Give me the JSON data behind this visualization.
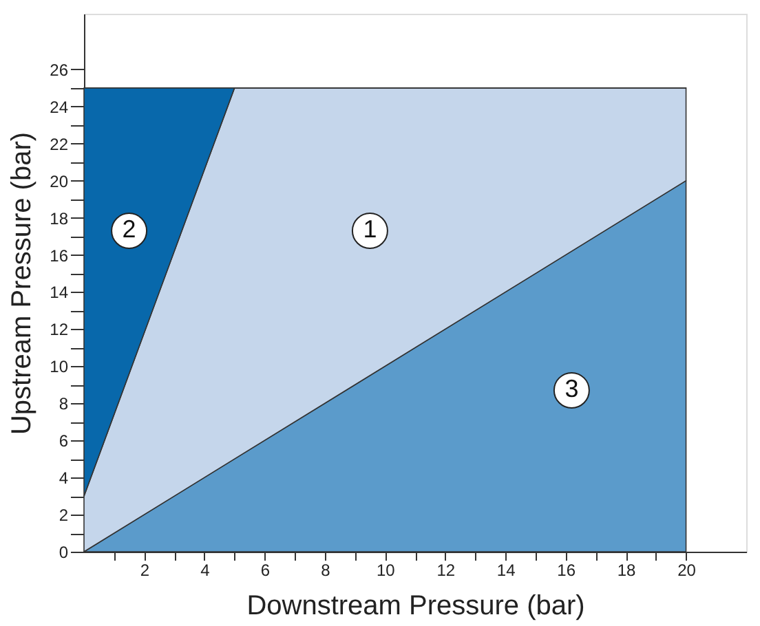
{
  "chart_data": {
    "type": "area",
    "stacked": true,
    "xlabel": "Downstream Pressure (bar)",
    "ylabel": "Upstream Pressure (bar)",
    "x": [
      0,
      5,
      20
    ],
    "series": [
      {
        "color": "#5b9bcb",
        "values": [
          0,
          5,
          20
        ]
      },
      {
        "color": "#c5d6eb",
        "values": [
          3,
          20,
          5
        ]
      },
      {
        "color": "#0868ab",
        "values": [
          22,
          0,
          0
        ]
      }
    ],
    "annotations": [
      {
        "text": "1",
        "x": 9.5,
        "y": 17.3
      },
      {
        "text": "2",
        "x": 1.5,
        "y": 17.3
      },
      {
        "text": "3",
        "x": 16.2,
        "y": 8.7
      }
    ],
    "xlim": [
      0,
      22
    ],
    "ylim": [
      0,
      29
    ],
    "xticks": [
      {
        "value": 1,
        "label": null
      },
      2,
      {
        "value": 3,
        "label": null
      },
      4,
      {
        "value": 5,
        "label": null
      },
      6,
      {
        "value": 7,
        "label": null
      },
      8,
      {
        "value": 9,
        "label": null
      },
      10,
      {
        "value": 11,
        "label": null
      },
      12,
      {
        "value": 13,
        "label": null
      },
      14,
      {
        "value": 15,
        "label": null
      },
      16,
      {
        "value": 17,
        "label": null
      },
      18,
      {
        "value": 19,
        "label": null
      },
      20
    ],
    "yticks": [
      0,
      {
        "value": 1,
        "label": null
      },
      2,
      {
        "value": 3,
        "label": null
      },
      4,
      {
        "value": 5,
        "label": null
      },
      6,
      {
        "value": 7,
        "label": null
      },
      8,
      {
        "value": 9,
        "label": null
      },
      10,
      {
        "value": 11,
        "label": null
      },
      12,
      {
        "value": 13,
        "label": null
      },
      14,
      {
        "value": 15,
        "label": null
      },
      16,
      {
        "value": 17,
        "label": null
      },
      18,
      {
        "value": 19,
        "label": null
      },
      20,
      {
        "value": 21,
        "label": null
      },
      22,
      {
        "value": 23,
        "label": null
      },
      24,
      {
        "value": 25,
        "label": null
      },
      26
    ],
    "grid": false,
    "legend": false
  }
}
